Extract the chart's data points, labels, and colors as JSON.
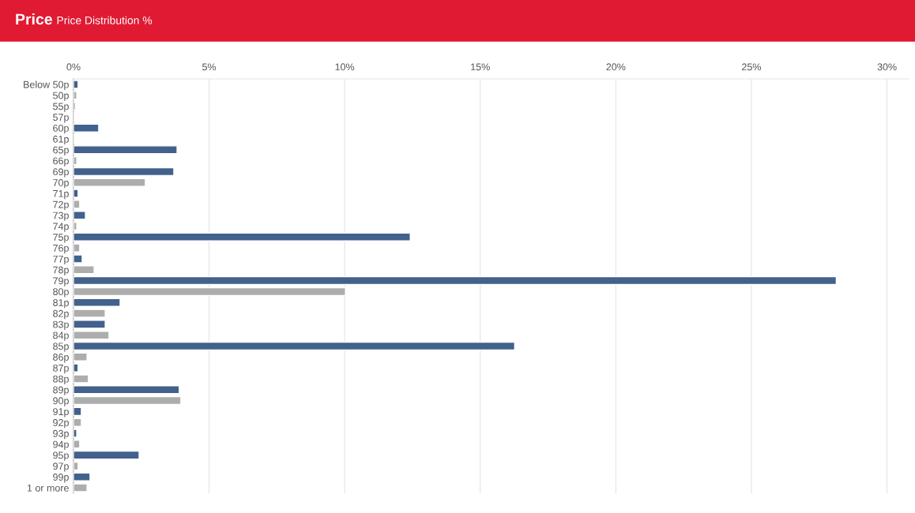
{
  "chart_data": {
    "type": "bar",
    "orientation": "horizontal",
    "title": "Price",
    "subtitle": "Price Distribution %",
    "categories": [
      "Below 50p",
      "50p",
      "55p",
      "57p",
      "60p",
      "61p",
      "65p",
      "66p",
      "69p",
      "70p",
      "71p",
      "72p",
      "73p",
      "74p",
      "75p",
      "76p",
      "77p",
      "78p",
      "79p",
      "80p",
      "81p",
      "82p",
      "83p",
      "84p",
      "85p",
      "86p",
      "87p",
      "88p",
      "89p",
      "90p",
      "91p",
      "92p",
      "93p",
      "94p",
      "95p",
      "97p",
      "99p",
      "1 or more"
    ],
    "values": [
      0.17,
      0.12,
      0.06,
      0.05,
      0.93,
      0.05,
      3.82,
      0.12,
      3.7,
      2.65,
      0.17,
      0.23,
      0.44,
      0.12,
      12.42,
      0.23,
      0.32,
      0.76,
      28.13,
      10.03,
      1.72,
      1.17,
      1.17,
      1.31,
      16.27,
      0.5,
      0.17,
      0.55,
      3.9,
      3.96,
      0.29,
      0.29,
      0.12,
      0.23,
      2.42,
      0.17,
      0.61,
      0.5
    ],
    "colors": [
      "#42618c",
      "#adadad",
      "#42618c",
      "#adadad",
      "#42618c",
      "#adadad",
      "#42618c",
      "#adadad",
      "#42618c",
      "#adadad",
      "#42618c",
      "#adadad",
      "#42618c",
      "#adadad",
      "#42618c",
      "#adadad",
      "#42618c",
      "#adadad",
      "#42618c",
      "#adadad",
      "#42618c",
      "#adadad",
      "#42618c",
      "#adadad",
      "#42618c",
      "#adadad",
      "#42618c",
      "#adadad",
      "#42618c",
      "#adadad",
      "#42618c",
      "#adadad",
      "#42618c",
      "#adadad",
      "#42618c",
      "#adadad",
      "#42618c",
      "#adadad"
    ],
    "xlim": [
      0,
      30.8
    ],
    "xticks": [
      {
        "value": 0,
        "label": "0%"
      },
      {
        "value": 5,
        "label": "5%"
      },
      {
        "value": 10,
        "label": "10%"
      },
      {
        "value": 15,
        "label": "15%"
      },
      {
        "value": 20,
        "label": "20%"
      },
      {
        "value": 25,
        "label": "25%"
      },
      {
        "value": 30,
        "label": "30%"
      }
    ],
    "grid": "x"
  }
}
